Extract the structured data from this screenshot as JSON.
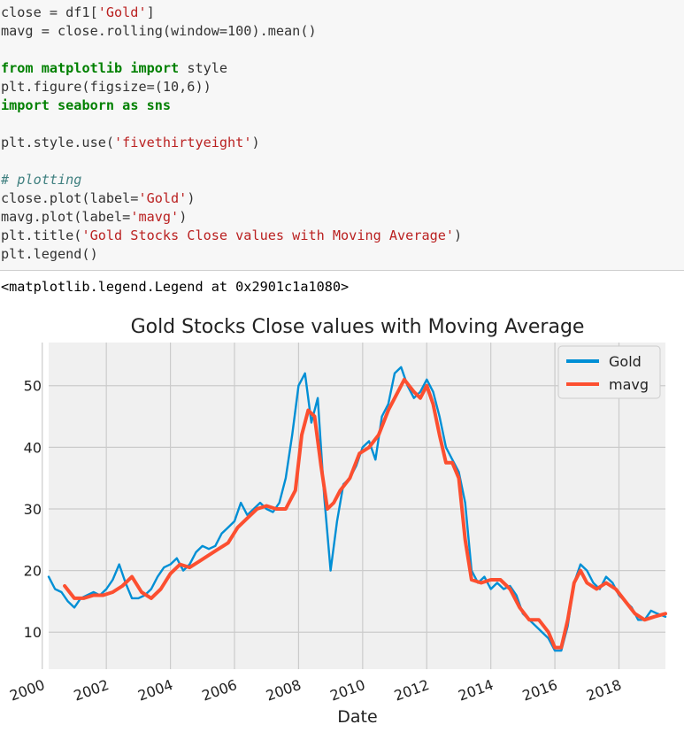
{
  "code": {
    "line1": [
      "close = df1[",
      "'Gold'",
      "]"
    ],
    "line2": "mavg = close.rolling(window=100).mean()",
    "line3": [
      "from",
      " matplotlib ",
      "import",
      " style"
    ],
    "line4": "plt.figure(figsize=(10,6))",
    "line5": [
      "import",
      " seaborn ",
      "as",
      " sns"
    ],
    "line6": [
      "plt.style.use(",
      "'fivethirtyeight'",
      ")"
    ],
    "line7": "# plotting",
    "line8": [
      "close.plot(label=",
      "'Gold'",
      ")"
    ],
    "line9": [
      "mavg.plot(label=",
      "'mavg'",
      ")"
    ],
    "line10": [
      "plt.title(",
      "'Gold Stocks Close values with Moving Average'",
      ")"
    ],
    "line11": "plt.legend()"
  },
  "output_text": "<matplotlib.legend.Legend at 0x2901c1a1080>",
  "chart_data": {
    "type": "line",
    "title": "Gold Stocks Close values with Moving Average",
    "xlabel": "Date",
    "ylabel": "",
    "xlim": [
      2000.2,
      2019.45
    ],
    "ylim": [
      4,
      57
    ],
    "xticks": [
      "2000",
      "2002",
      "2004",
      "2006",
      "2008",
      "2010",
      "2012",
      "2014",
      "2016",
      "2018"
    ],
    "yticks": [
      10,
      20,
      30,
      40,
      50
    ],
    "grid": true,
    "legend_position": "top-right",
    "series": [
      {
        "name": "Gold",
        "color": "#008fd5",
        "x": [
          2000.2,
          2000.4,
          2000.6,
          2000.8,
          2001.0,
          2001.2,
          2001.4,
          2001.6,
          2001.8,
          2002.0,
          2002.2,
          2002.4,
          2002.6,
          2002.8,
          2003.0,
          2003.2,
          2003.4,
          2003.6,
          2003.8,
          2004.0,
          2004.2,
          2004.4,
          2004.6,
          2004.8,
          2005.0,
          2005.2,
          2005.4,
          2005.6,
          2005.8,
          2006.0,
          2006.2,
          2006.4,
          2006.6,
          2006.8,
          2007.0,
          2007.2,
          2007.4,
          2007.6,
          2007.8,
          2008.0,
          2008.2,
          2008.4,
          2008.6,
          2008.8,
          2009.0,
          2009.2,
          2009.4,
          2009.6,
          2009.8,
          2010.0,
          2010.2,
          2010.4,
          2010.6,
          2010.8,
          2011.0,
          2011.2,
          2011.4,
          2011.6,
          2011.8,
          2012.0,
          2012.2,
          2012.4,
          2012.6,
          2012.8,
          2013.0,
          2013.2,
          2013.4,
          2013.6,
          2013.8,
          2014.0,
          2014.2,
          2014.4,
          2014.6,
          2014.8,
          2015.0,
          2015.2,
          2015.4,
          2015.6,
          2015.8,
          2016.0,
          2016.2,
          2016.4,
          2016.6,
          2016.8,
          2017.0,
          2017.2,
          2017.4,
          2017.6,
          2017.8,
          2018.0,
          2018.2,
          2018.4,
          2018.6,
          2018.8,
          2019.0,
          2019.2,
          2019.45
        ],
        "values": [
          19,
          17,
          16.5,
          15,
          14,
          15.5,
          16,
          16.5,
          16,
          17,
          18.5,
          21,
          18,
          15.5,
          15.5,
          16,
          17,
          19,
          20.5,
          21,
          22,
          20,
          21,
          23,
          24,
          23.5,
          24,
          26,
          27,
          28,
          31,
          29,
          30,
          31,
          30,
          29.5,
          31,
          35,
          42,
          50,
          52,
          44,
          48,
          32,
          20,
          28,
          34,
          35,
          37,
          40,
          41,
          38,
          45,
          47,
          52,
          53,
          50,
          48,
          49,
          51,
          49,
          45,
          40,
          38,
          36,
          31,
          20,
          18,
          19,
          17,
          18,
          17,
          17.5,
          16,
          13,
          12,
          11,
          10,
          9,
          7,
          7,
          11,
          18,
          21,
          20,
          18,
          17,
          19,
          18,
          16,
          15,
          14,
          12,
          12,
          13.5,
          13,
          12.5
        ]
      },
      {
        "name": "mavg",
        "color": "#fc4f30",
        "x": [
          2000.7,
          2001.0,
          2001.3,
          2001.6,
          2001.9,
          2002.2,
          2002.5,
          2002.8,
          2003.1,
          2003.4,
          2003.7,
          2004.0,
          2004.3,
          2004.6,
          2004.9,
          2005.2,
          2005.5,
          2005.8,
          2006.1,
          2006.4,
          2006.7,
          2007.0,
          2007.3,
          2007.6,
          2007.9,
          2008.1,
          2008.3,
          2008.5,
          2008.7,
          2008.9,
          2009.1,
          2009.3,
          2009.6,
          2009.9,
          2010.2,
          2010.5,
          2010.8,
          2011.1,
          2011.3,
          2011.6,
          2011.8,
          2012.0,
          2012.2,
          2012.4,
          2012.6,
          2012.8,
          2013.0,
          2013.2,
          2013.4,
          2013.7,
          2014.0,
          2014.3,
          2014.6,
          2014.9,
          2015.2,
          2015.5,
          2015.8,
          2016.0,
          2016.2,
          2016.4,
          2016.6,
          2016.8,
          2017.0,
          2017.3,
          2017.6,
          2017.9,
          2018.2,
          2018.5,
          2018.8,
          2019.1,
          2019.45
        ],
        "values": [
          17.5,
          15.5,
          15.5,
          16,
          16,
          16.5,
          17.5,
          19,
          16.5,
          15.5,
          17,
          19.5,
          21,
          20.5,
          21.5,
          22.5,
          23.5,
          24.5,
          27,
          28.5,
          30,
          30.5,
          30,
          30,
          33,
          42,
          46,
          45,
          37,
          30,
          31,
          33,
          35,
          39,
          40,
          42,
          46,
          49,
          51,
          49,
          48,
          50,
          47,
          42,
          37.5,
          37.5,
          35,
          25,
          18.5,
          18,
          18.5,
          18.5,
          17,
          14,
          12,
          12,
          10,
          7.5,
          7.5,
          12,
          18,
          20,
          18,
          17,
          18,
          17,
          15,
          13,
          12,
          12.5,
          13
        ]
      }
    ]
  }
}
